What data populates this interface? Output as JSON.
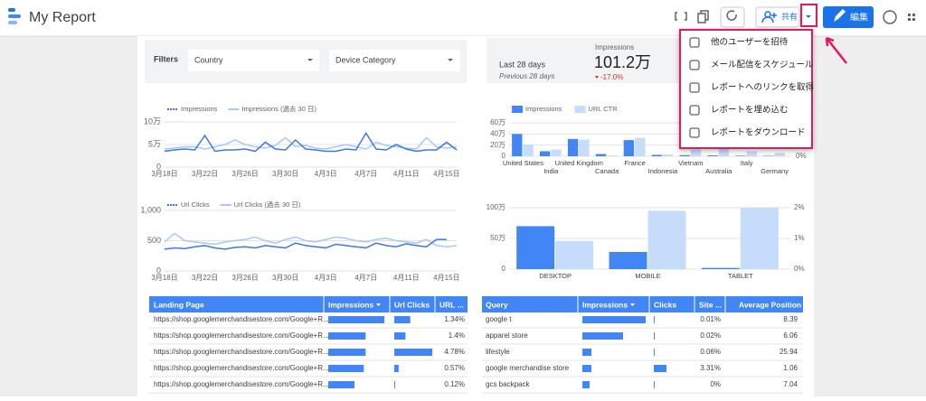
{
  "header": {
    "title": "My Report",
    "share": "共有",
    "edit": "編集"
  },
  "filters": {
    "label": "Filters",
    "dropdowns": [
      "Country",
      "Device Category"
    ]
  },
  "scorecard": {
    "period": "Last 28 days",
    "compare": "Previous 28 days",
    "metric": "Impressions",
    "value": "101.2万",
    "change": "-17.0%"
  },
  "menu": {
    "items": [
      "他のユーザーを招待",
      "メール配信をスケジュール",
      "レポートへのリンクを取得",
      "レポートを埋め込む",
      "レポートをダウンロード"
    ]
  },
  "charts": [
    {
      "type": "line",
      "categories": [
        "3月18日",
        null,
        null,
        null,
        "3月22日",
        null,
        null,
        null,
        "3月26日",
        null,
        null,
        null,
        "3月30日",
        null,
        null,
        null,
        "4月3日",
        null,
        null,
        null,
        "4月7日",
        null,
        null,
        null,
        "4月11日",
        null,
        null,
        null,
        "4月15日",
        null
      ],
      "series": [
        {
          "name": "Impressions",
          "color": "#3b78e7",
          "values": [
            35000,
            38000,
            40000,
            38000,
            70000,
            35000,
            38000,
            38000,
            40000,
            35000,
            55000,
            40000,
            38000,
            60000,
            40000,
            38000,
            35000,
            35000,
            40000,
            38000,
            75000,
            40000,
            38000,
            50000,
            40000,
            35000,
            38000,
            38000,
            55000,
            38000
          ]
        },
        {
          "name": "Impressions (過去 30 日)",
          "color": "#a8c7fa",
          "values": [
            40000,
            42000,
            45000,
            45000,
            40000,
            45000,
            50000,
            60000,
            50000,
            45000,
            42000,
            48000,
            65000,
            45000,
            48000,
            42000,
            40000,
            45000,
            50000,
            45000,
            40000,
            55000,
            48000,
            45000,
            42000,
            40000,
            65000,
            45000,
            42000,
            45000
          ]
        }
      ],
      "ylim": [
        0,
        100000
      ],
      "yticks": [
        0,
        {
          "value": 50000,
          "label": "5万"
        },
        {
          "value": 100000,
          "label": "10万"
        }
      ]
    },
    {
      "type": "line",
      "categories": [
        "3月18日",
        null,
        null,
        null,
        "3月22日",
        null,
        null,
        null,
        "3月26日",
        null,
        null,
        null,
        "3月30日",
        null,
        null,
        null,
        "4月3日",
        null,
        null,
        null,
        "4月7日",
        null,
        null,
        null,
        "4月11日",
        null,
        null,
        null,
        "4月15日",
        null
      ],
      "series": [
        {
          "name": "Url Clicks",
          "color": "#3b78e7",
          "values": [
            360,
            380,
            370,
            400,
            420,
            380,
            360,
            390,
            400,
            380,
            420,
            400,
            380,
            460,
            420,
            400,
            380,
            440,
            420,
            400,
            380,
            460,
            420,
            400,
            450,
            420,
            400,
            520,
            520,
            null
          ]
        },
        {
          "name": "Url Clicks (過去 30 日)",
          "color": "#a8c7fa",
          "values": [
            480,
            620,
            500,
            480,
            460,
            440,
            480,
            500,
            520,
            560,
            500,
            460,
            520,
            560,
            500,
            480,
            520,
            560,
            540,
            500,
            480,
            520,
            540,
            500,
            480,
            460,
            520,
            420,
            400,
            420
          ]
        }
      ],
      "ylim": [
        0,
        1000
      ],
      "yticks": [
        0,
        500,
        {
          "value": 1000,
          "label": "1,000"
        }
      ]
    },
    {
      "type": "bar",
      "categories": [
        "United States",
        "India",
        "United Kingdom",
        "Canada",
        "France",
        "Indonesia",
        "Vietnam",
        "Australia",
        "Italy",
        "Germany"
      ],
      "series": [
        {
          "name": "Impressions",
          "color": "#4285f4",
          "values": [
            400000,
            90000,
            310000,
            40000,
            290000,
            25000,
            20000,
            15000,
            10000,
            8000
          ]
        },
        {
          "name": "URL CTR",
          "color": "#c6dcfb",
          "axis": "y2",
          "values": [
            1.4,
            0.8,
            2.0,
            0.1,
            2.2,
            0.2,
            0.8,
            1.2,
            0.6,
            0.4
          ]
        }
      ],
      "ylim": [
        0,
        600000
      ],
      "yticks": [
        0,
        {
          "value": 200000,
          "label": "20万"
        },
        {
          "value": 400000,
          "label": "40万"
        },
        {
          "value": 600000,
          "label": "60万"
        }
      ],
      "y2lim": [
        0,
        4
      ],
      "y2ticks": [
        {
          "value": 0,
          "label": "0%"
        }
      ]
    },
    {
      "type": "bar",
      "categories": [
        "DESKTOP",
        "MOBILE",
        "TABLET"
      ],
      "series": [
        {
          "name": "Impressions",
          "color": "#4285f4",
          "values": [
            700000,
            280000,
            20000
          ]
        },
        {
          "name": "URL CTR",
          "color": "#c6dcfb",
          "axis": "y2",
          "values": [
            0.92,
            1.9,
            2.0
          ]
        }
      ],
      "ylim": [
        0,
        1000000
      ],
      "yticks": [
        0,
        {
          "value": 500000,
          "label": "50万"
        },
        {
          "value": 1000000,
          "label": "100万"
        }
      ],
      "y2lim": [
        0,
        2
      ],
      "y2ticks": [
        {
          "value": 0,
          "label": "0%"
        },
        {
          "value": 1,
          "label": "1%"
        },
        {
          "value": 2,
          "label": "2%"
        }
      ]
    }
  ],
  "tables": [
    {
      "headers": [
        "Landing Page",
        "Impressions",
        "Url Clicks",
        "URL ..."
      ],
      "rows": [
        [
          "https://shop.googlemerchandisestore.com/Google+R...",
          60000,
          800,
          "1.34%"
        ],
        [
          "https://shop.googlemerchandisestore.com/Google+R...",
          40000,
          560,
          "1.4%"
        ],
        [
          "https://shop.googlemerchandisestore.com/Google+R...",
          40000,
          1900,
          "4.78%"
        ],
        [
          "https://shop.googlemerchandisestore.com/Google+R...",
          38000,
          220,
          "0.57%"
        ],
        [
          "https://shop.googlemerchandisestore.com/Google+R...",
          28000,
          35,
          "0.12%"
        ]
      ]
    },
    {
      "headers": [
        "Query",
        "Impressions",
        "Clicks",
        "Site ...",
        "Average Position"
      ],
      "rows": [
        [
          "google t",
          70000,
          5,
          "0.01%",
          8.39
        ],
        [
          "apparel store",
          45000,
          7,
          "0.02%",
          6.06
        ],
        [
          "lifestyle",
          10000,
          6,
          "0.06%",
          25.94
        ],
        [
          "google merchandise store",
          10000,
          330,
          "3.31%",
          1.06
        ],
        [
          "gcs backpack",
          8000,
          0,
          "0%",
          7.04
        ]
      ]
    }
  ]
}
